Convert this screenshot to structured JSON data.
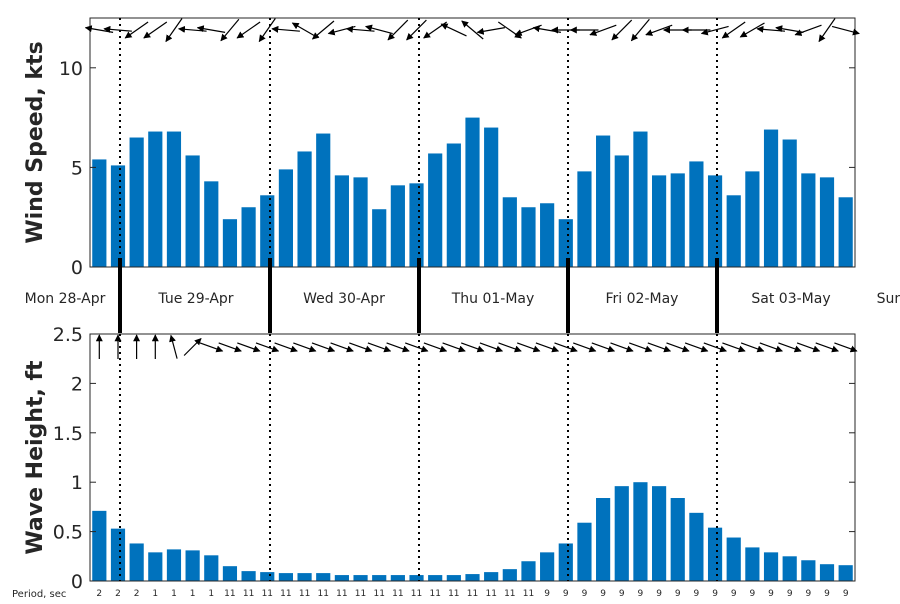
{
  "chart_data": [
    {
      "type": "bar",
      "ylabel": "Wind Speed, kts",
      "ylim": [
        0,
        12.5
      ],
      "yticks": [
        0,
        5,
        10
      ],
      "color": "#0072bd",
      "values": [
        5.4,
        5.1,
        6.5,
        6.8,
        6.8,
        5.6,
        4.3,
        2.4,
        3.0,
        3.6,
        4.9,
        5.8,
        6.7,
        4.6,
        4.5,
        2.9,
        4.1,
        4.2,
        5.7,
        6.2,
        7.5,
        7.0,
        3.5,
        3.0,
        3.2,
        2.4,
        4.8,
        6.6,
        5.6,
        6.8,
        4.6,
        4.7,
        5.3,
        4.6,
        3.6,
        4.8,
        6.9,
        6.4,
        4.7,
        4.5,
        3.5
      ],
      "direction_arrows_deg": [
        170,
        175,
        215,
        215,
        235,
        175,
        170,
        230,
        215,
        235,
        175,
        150,
        220,
        195,
        175,
        165,
        225,
        225,
        215,
        155,
        140,
        190,
        325,
        200,
        170,
        180,
        180,
        200,
        225,
        230,
        200,
        180,
        180,
        195,
        215,
        210,
        175,
        170,
        200,
        235,
        345
      ]
    },
    {
      "type": "bar",
      "ylabel": "Wave Height, ft",
      "ylim": [
        0,
        2.5
      ],
      "yticks": [
        0,
        0.5,
        1,
        1.5,
        2,
        2.5
      ],
      "color": "#0072bd",
      "values": [
        0.71,
        0.53,
        0.38,
        0.29,
        0.32,
        0.31,
        0.26,
        0.15,
        0.1,
        0.09,
        0.08,
        0.08,
        0.08,
        0.06,
        0.06,
        0.06,
        0.06,
        0.06,
        0.06,
        0.06,
        0.07,
        0.09,
        0.12,
        0.2,
        0.29,
        0.38,
        0.59,
        0.84,
        0.96,
        1.0,
        0.96,
        0.84,
        0.69,
        0.54,
        0.44,
        0.34,
        0.29,
        0.25,
        0.21,
        0.17,
        0.16
      ],
      "direction_arrows_deg": [
        90,
        90,
        90,
        90,
        105,
        45,
        340,
        340,
        340,
        340,
        340,
        340,
        340,
        340,
        340,
        340,
        340,
        340,
        340,
        340,
        340,
        340,
        340,
        340,
        340,
        340,
        340,
        340,
        340,
        340,
        340,
        340,
        340,
        340,
        340,
        340,
        340,
        340,
        340,
        340,
        340
      ],
      "period_label": "Period, sec",
      "periods": [
        "2",
        "2",
        "2",
        "1",
        "1",
        "1",
        "1",
        "11",
        "11",
        "11",
        "11",
        "11",
        "11",
        "11",
        "11",
        "11",
        "11",
        "11",
        "11",
        "11",
        "11",
        "11",
        "11",
        "11",
        "9",
        "9",
        "9",
        "9",
        "9",
        "9",
        "9",
        "9",
        "9",
        "9",
        "9",
        "9",
        "9",
        "9",
        "9",
        "9",
        "9"
      ]
    }
  ],
  "days": [
    "Mon 28-Apr",
    "Tue 29-Apr",
    "Wed 30-Apr",
    "Thu 01-May",
    "Fri 02-May",
    "Sat 03-May",
    "Sun"
  ]
}
